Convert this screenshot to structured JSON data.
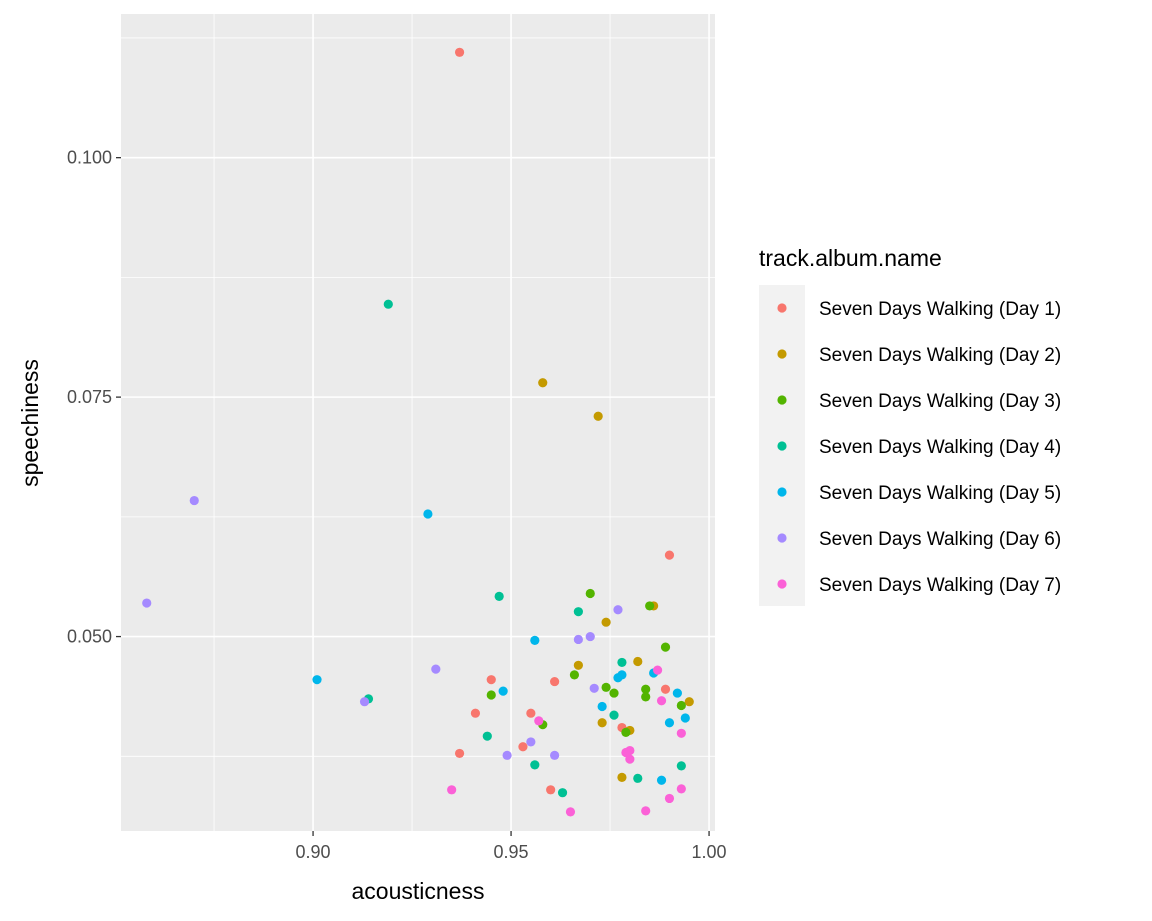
{
  "chart_data": {
    "type": "scatter",
    "title": "",
    "xlabel": "acousticness",
    "ylabel": "speechiness",
    "xlim": [
      0.8515,
      1.0015
    ],
    "ylim": [
      0.0297,
      0.115
    ],
    "x_ticks": [
      0.9,
      0.95,
      1.0
    ],
    "x_tick_labels": [
      "0.90",
      "0.95",
      "1.00"
    ],
    "y_ticks": [
      0.05,
      0.075,
      0.1
    ],
    "y_tick_labels": [
      "0.050",
      "0.075",
      "0.100"
    ],
    "grid": true,
    "legend": {
      "title": "track.album.name",
      "placement": "right"
    },
    "series": [
      {
        "name": "Seven Days Walking (Day 1)",
        "color": "#F8766D",
        "points": [
          [
            0.937,
            0.111
          ],
          [
            0.99,
            0.0585
          ],
          [
            0.945,
            0.0455
          ],
          [
            0.961,
            0.0453
          ],
          [
            0.941,
            0.042
          ],
          [
            0.955,
            0.042
          ],
          [
            0.953,
            0.0385
          ],
          [
            0.937,
            0.0378
          ],
          [
            0.96,
            0.034
          ],
          [
            0.978,
            0.0405
          ],
          [
            0.989,
            0.0445
          ]
        ]
      },
      {
        "name": "Seven Days Walking (Day 2)",
        "color": "#C49A00",
        "points": [
          [
            0.958,
            0.0765
          ],
          [
            0.972,
            0.073
          ],
          [
            0.974,
            0.0515
          ],
          [
            0.986,
            0.0532
          ],
          [
            0.967,
            0.047
          ],
          [
            0.982,
            0.0474
          ],
          [
            0.973,
            0.041
          ],
          [
            0.98,
            0.0402
          ],
          [
            0.978,
            0.0353
          ],
          [
            0.995,
            0.0432
          ]
        ]
      },
      {
        "name": "Seven Days Walking (Day 3)",
        "color": "#53B400",
        "points": [
          [
            0.97,
            0.0545
          ],
          [
            0.985,
            0.0532
          ],
          [
            0.989,
            0.0489
          ],
          [
            0.966,
            0.046
          ],
          [
            0.974,
            0.0447
          ],
          [
            0.976,
            0.0441
          ],
          [
            0.984,
            0.0445
          ],
          [
            0.984,
            0.0437
          ],
          [
            0.945,
            0.0439
          ],
          [
            0.958,
            0.0408
          ],
          [
            0.979,
            0.04
          ],
          [
            0.993,
            0.0428
          ]
        ]
      },
      {
        "name": "Seven Days Walking (Day 4)",
        "color": "#00C094",
        "points": [
          [
            0.919,
            0.0847
          ],
          [
            0.947,
            0.0542
          ],
          [
            0.967,
            0.0526
          ],
          [
            0.978,
            0.0473
          ],
          [
            0.914,
            0.0435
          ],
          [
            0.944,
            0.0396
          ],
          [
            0.956,
            0.0366
          ],
          [
            0.963,
            0.0337
          ],
          [
            0.976,
            0.0418
          ],
          [
            0.982,
            0.0352
          ],
          [
            0.993,
            0.0365
          ]
        ]
      },
      {
        "name": "Seven Days Walking (Day 5)",
        "color": "#00B6EB",
        "points": [
          [
            0.929,
            0.0628
          ],
          [
            0.901,
            0.0455
          ],
          [
            0.956,
            0.0496
          ],
          [
            0.948,
            0.0443
          ],
          [
            0.977,
            0.0457
          ],
          [
            0.978,
            0.046
          ],
          [
            0.986,
            0.0462
          ],
          [
            0.992,
            0.0441
          ],
          [
            0.973,
            0.0427
          ],
          [
            0.99,
            0.041
          ],
          [
            0.994,
            0.0415
          ],
          [
            0.988,
            0.035
          ]
        ]
      },
      {
        "name": "Seven Days Walking (Day 6)",
        "color": "#A58AFF",
        "points": [
          [
            0.87,
            0.0642
          ],
          [
            0.858,
            0.0535
          ],
          [
            0.931,
            0.0466
          ],
          [
            0.913,
            0.0432
          ],
          [
            0.977,
            0.0528
          ],
          [
            0.967,
            0.0497
          ],
          [
            0.97,
            0.05
          ],
          [
            0.971,
            0.0446
          ],
          [
            0.955,
            0.039
          ],
          [
            0.949,
            0.0376
          ],
          [
            0.961,
            0.0376
          ]
        ]
      },
      {
        "name": "Seven Days Walking (Day 7)",
        "color": "#FB61D7",
        "points": [
          [
            0.987,
            0.0465
          ],
          [
            0.988,
            0.0433
          ],
          [
            0.957,
            0.0412
          ],
          [
            0.993,
            0.0399
          ],
          [
            0.98,
            0.0381
          ],
          [
            0.979,
            0.0379
          ],
          [
            0.98,
            0.0372
          ],
          [
            0.935,
            0.034
          ],
          [
            0.993,
            0.0341
          ],
          [
            0.99,
            0.0331
          ],
          [
            0.965,
            0.0317
          ],
          [
            0.984,
            0.0318
          ]
        ]
      }
    ]
  }
}
